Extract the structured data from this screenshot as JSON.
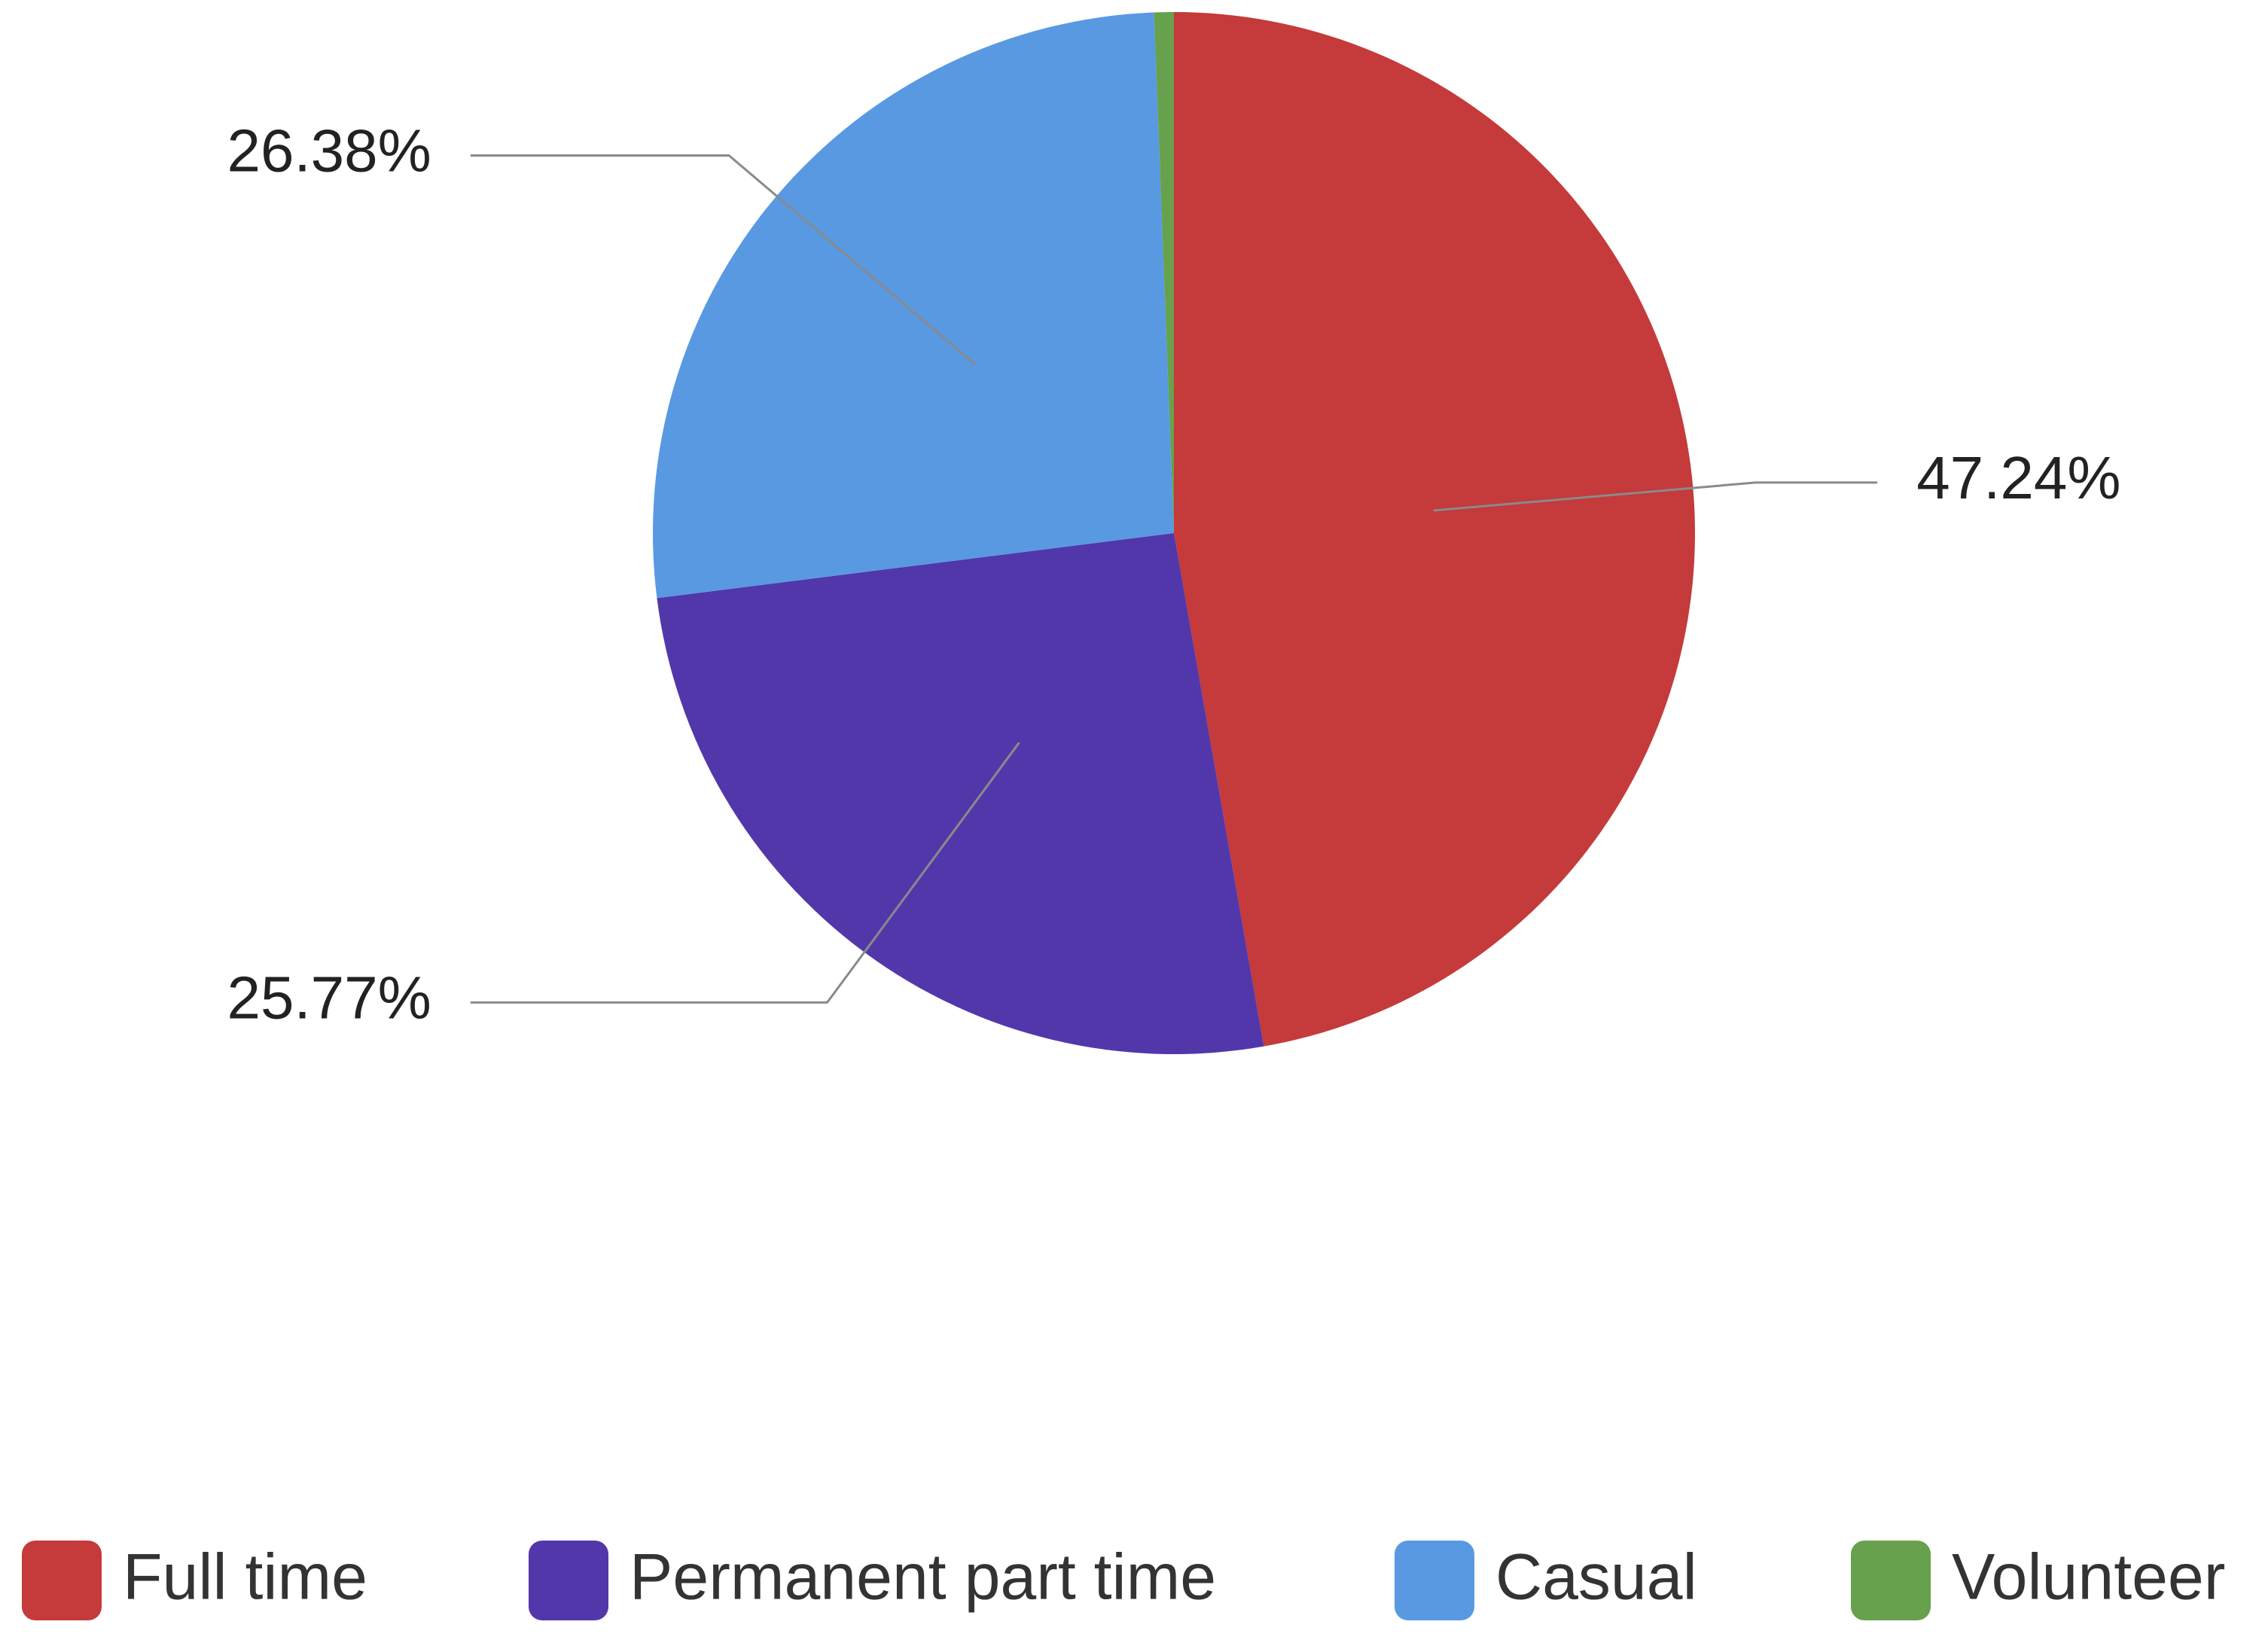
{
  "chart_data": {
    "type": "pie",
    "categories": [
      "Full time",
      "Permanent part time",
      "Casual",
      "Volunteer"
    ],
    "values": [
      47.24,
      25.77,
      26.38,
      0.61
    ],
    "value_labels": [
      "47.24%",
      "25.77%",
      "26.38%",
      null
    ],
    "colors": [
      "#c53a3a",
      "#5237ab",
      "#5899e2",
      "#67a14d"
    ],
    "legend": "bottom"
  }
}
